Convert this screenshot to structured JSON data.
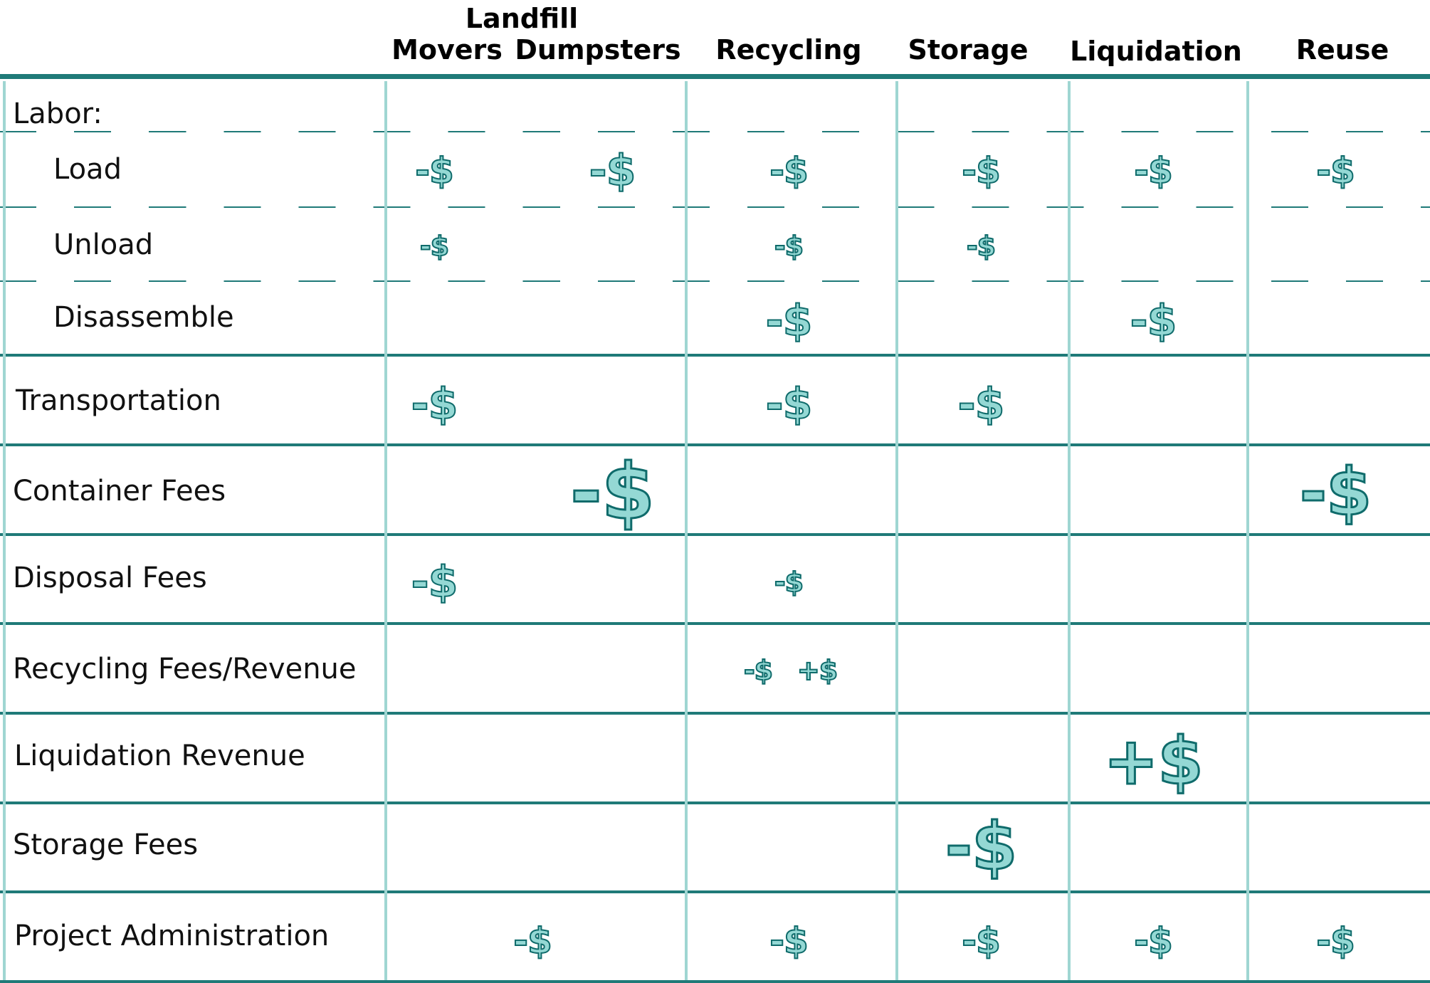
{
  "columns": {
    "landfill_group": "Landfill",
    "movers": "Movers",
    "dumpsters": "Dumpsters",
    "recycling": "Recycling",
    "storage": "Storage",
    "liquidation": "Liquidation",
    "reuse": "Reuse"
  },
  "rows": {
    "labor": "Labor:",
    "load": "Load",
    "unload": "Unload",
    "disassemble": "Disassemble",
    "transportation": "Transportation",
    "container_fees": "Container Fees",
    "disposal_fees": "Disposal Fees",
    "recycling_fees_revenue": "Recycling Fees/Revenue",
    "liquidation_revenue": "Liquidation Revenue",
    "storage_fees": "Storage Fees",
    "project_administration": "Project Administration"
  },
  "cells": [
    {
      "row": "load",
      "col": "movers",
      "text": "-$",
      "size": "small"
    },
    {
      "row": "load",
      "col": "dumpsters",
      "text": "-$",
      "size": "medium"
    },
    {
      "row": "load",
      "col": "recycling",
      "text": "-$",
      "size": "small"
    },
    {
      "row": "load",
      "col": "storage",
      "text": "-$",
      "size": "small"
    },
    {
      "row": "load",
      "col": "liquidation",
      "text": "-$",
      "size": "small"
    },
    {
      "row": "load",
      "col": "reuse",
      "text": "-$",
      "size": "small"
    },
    {
      "row": "unload",
      "col": "movers",
      "text": "-$",
      "size": "xsmall"
    },
    {
      "row": "unload",
      "col": "recycling",
      "text": "-$",
      "size": "xsmall"
    },
    {
      "row": "unload",
      "col": "storage",
      "text": "-$",
      "size": "xsmall"
    },
    {
      "row": "disassemble",
      "col": "recycling",
      "text": "-$",
      "size": "medium"
    },
    {
      "row": "disassemble",
      "col": "liquidation",
      "text": "-$",
      "size": "medium"
    },
    {
      "row": "transportation",
      "col": "movers",
      "text": "-$",
      "size": "medium"
    },
    {
      "row": "transportation",
      "col": "recycling",
      "text": "-$",
      "size": "medium"
    },
    {
      "row": "transportation",
      "col": "storage",
      "text": "-$",
      "size": "medium"
    },
    {
      "row": "container_fees",
      "col": "dumpsters",
      "text": "-$",
      "size": "xlarge"
    },
    {
      "row": "container_fees",
      "col": "reuse",
      "text": "-$",
      "size": "large"
    },
    {
      "row": "disposal_fees",
      "col": "movers",
      "text": "-$",
      "size": "medium"
    },
    {
      "row": "disposal_fees",
      "col": "recycling",
      "text": "-$",
      "size": "xsmall"
    },
    {
      "row": "recycling_fees_revenue",
      "col": "recycling_neg",
      "text": "-$",
      "size": "xsmall"
    },
    {
      "row": "recycling_fees_revenue",
      "col": "recycling_pos",
      "text": "+$",
      "size": "xsmall"
    },
    {
      "row": "liquidation_revenue",
      "col": "liquidation",
      "text": "+$",
      "size": "large"
    },
    {
      "row": "storage_fees",
      "col": "storage",
      "text": "-$",
      "size": "large"
    },
    {
      "row": "project_administration",
      "col": "landfill",
      "text": "-$",
      "size": "small"
    },
    {
      "row": "project_administration",
      "col": "recycling",
      "text": "-$",
      "size": "small"
    },
    {
      "row": "project_administration",
      "col": "storage",
      "text": "-$",
      "size": "small"
    },
    {
      "row": "project_administration",
      "col": "liquidation",
      "text": "-$",
      "size": "small"
    },
    {
      "row": "project_administration",
      "col": "reuse",
      "text": "-$",
      "size": "small"
    }
  ],
  "colors": {
    "header_rule": "#1f7a78",
    "row_rule": "#1f7a78",
    "column_rule": "#9fd6d2",
    "dash_rule": "#1f7a78",
    "symbol_fill": "#94d8d4",
    "symbol_outline": "#0f6b6b"
  }
}
